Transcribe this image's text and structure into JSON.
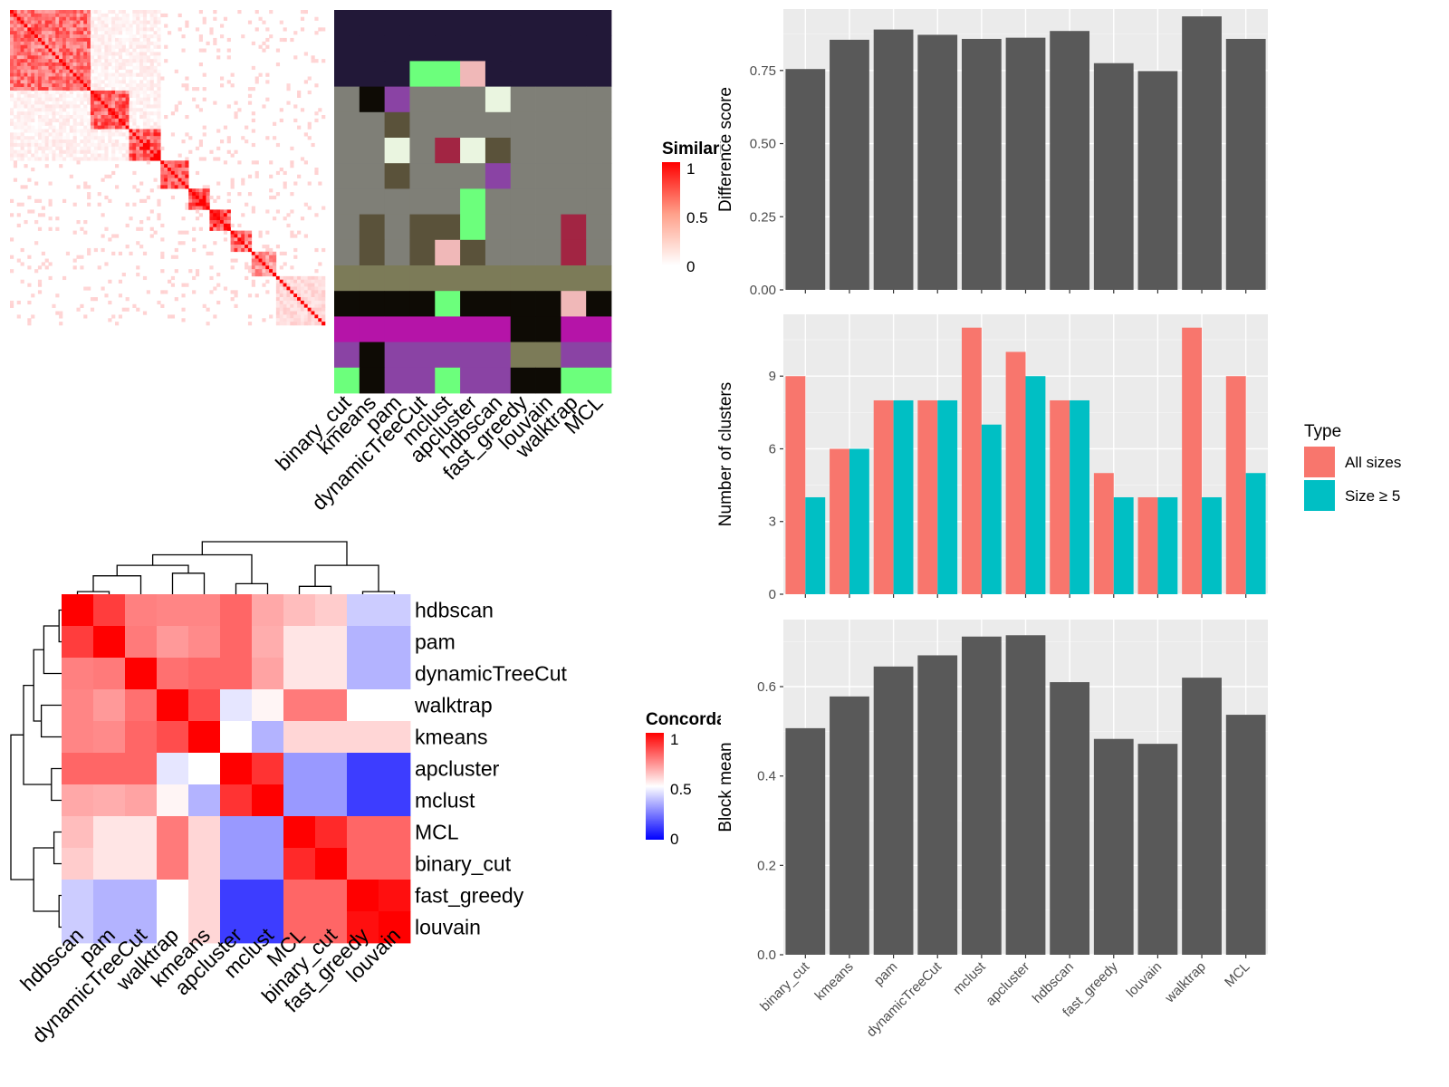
{
  "methods": [
    "binary_cut",
    "kmeans",
    "pam",
    "dynamicTreeCut",
    "mclust",
    "apcluster",
    "hdbscan",
    "fast_greedy",
    "louvain",
    "walktrap",
    "MCL"
  ],
  "similarity_legend": {
    "title": "Similarity",
    "ticks": [
      "1",
      "0.5",
      "0"
    ],
    "colors": [
      "#ff0000",
      "#ffffff"
    ]
  },
  "concordance_legend": {
    "title": "Concordance",
    "ticks": [
      "1",
      "0.5",
      "0"
    ],
    "colors": [
      "#ff0000",
      "#ffffff",
      "#0000ff"
    ]
  },
  "type_legend": {
    "title": "Type",
    "items": [
      {
        "label": "All sizes",
        "color": "#f8766d"
      },
      {
        "label": "Size ≥ 5",
        "color": "#00bfc4"
      }
    ]
  },
  "cluster_colors": {
    "palette": [
      "#221838",
      "#7f7f77",
      "#5a523a",
      "#7c7b58",
      "#0e0b05",
      "#b514a8",
      "#8a43a4",
      "#6cff7c",
      "#f0b8b8",
      "#eaf5e0",
      "#a22543",
      "#ffffff"
    ],
    "row_groups": [
      4,
      3,
      3,
      3,
      2,
      2,
      2,
      1,
      1,
      1,
      1
    ],
    "strip_cells": [
      [
        0,
        0,
        0,
        0,
        0,
        0,
        0,
        0,
        0,
        0,
        0
      ],
      [
        0,
        0,
        0,
        0,
        0,
        0,
        0,
        0,
        0,
        0,
        0
      ],
      [
        0,
        0,
        0,
        7,
        7,
        8,
        0,
        0,
        0,
        0,
        0
      ],
      [
        1,
        4,
        6,
        1,
        1,
        1,
        9,
        1,
        1,
        1,
        1
      ],
      [
        1,
        1,
        2,
        1,
        1,
        1,
        1,
        1,
        1,
        1,
        1
      ],
      [
        1,
        1,
        9,
        1,
        10,
        9,
        2,
        1,
        1,
        1,
        1
      ],
      [
        1,
        1,
        2,
        1,
        1,
        1,
        6,
        1,
        1,
        1,
        1
      ],
      [
        1,
        1,
        1,
        1,
        1,
        7,
        1,
        1,
        1,
        1,
        1
      ],
      [
        1,
        2,
        1,
        2,
        2,
        7,
        1,
        1,
        1,
        10,
        1
      ],
      [
        1,
        2,
        1,
        2,
        8,
        2,
        1,
        1,
        1,
        10,
        1
      ],
      [
        3,
        3,
        3,
        3,
        3,
        3,
        3,
        3,
        3,
        3,
        3
      ],
      [
        4,
        4,
        4,
        4,
        7,
        4,
        4,
        4,
        4,
        8,
        4
      ],
      [
        5,
        5,
        5,
        5,
        5,
        5,
        5,
        4,
        4,
        5,
        5
      ],
      [
        6,
        4,
        6,
        6,
        6,
        6,
        6,
        3,
        3,
        6,
        6
      ],
      [
        7,
        4,
        6,
        6,
        7,
        6,
        6,
        4,
        4,
        7,
        7
      ]
    ]
  },
  "chart_data": [
    {
      "type": "heatmap",
      "name": "similarity-matrix",
      "n_terms": 90,
      "blocks": [
        {
          "range": [
            0,
            23
          ],
          "within": 0.55
        },
        {
          "range": [
            23,
            34
          ],
          "within": 0.6
        },
        {
          "range": [
            34,
            43
          ],
          "within": 0.7
        },
        {
          "range": [
            43,
            51
          ],
          "within": 0.65
        },
        {
          "range": [
            51,
            57
          ],
          "within": 0.75
        },
        {
          "range": [
            57,
            63
          ],
          "within": 0.7
        },
        {
          "range": [
            63,
            69
          ],
          "within": 0.6
        },
        {
          "range": [
            69,
            76
          ],
          "within": 0.4
        },
        {
          "range": [
            76,
            90
          ],
          "within": 0.15
        }
      ],
      "legend": "Similarity"
    },
    {
      "type": "bar",
      "name": "difference-score",
      "categories": [
        "binary_cut",
        "kmeans",
        "pam",
        "dynamicTreeCut",
        "mclust",
        "apcluster",
        "hdbscan",
        "fast_greedy",
        "louvain",
        "walktrap",
        "MCL"
      ],
      "values": [
        0.755,
        0.855,
        0.89,
        0.872,
        0.858,
        0.862,
        0.885,
        0.775,
        0.748,
        0.935,
        0.858
      ],
      "ylabel": "Difference score",
      "ylim": [
        0,
        0.96
      ],
      "yticks": [
        0,
        0.25,
        0.5,
        0.75
      ],
      "ytick_labels": [
        "0.00",
        "0.25",
        "0.50",
        "0.75"
      ]
    },
    {
      "type": "bar",
      "name": "number-of-clusters",
      "categories": [
        "binary_cut",
        "kmeans",
        "pam",
        "dynamicTreeCut",
        "mclust",
        "apcluster",
        "hdbscan",
        "fast_greedy",
        "louvain",
        "walktrap",
        "MCL"
      ],
      "series": [
        {
          "name": "All sizes",
          "values": [
            9,
            6,
            8,
            8,
            11,
            10,
            8,
            5,
            4,
            11,
            9
          ]
        },
        {
          "name": "Size ≥ 5",
          "values": [
            4,
            6,
            8,
            8,
            7,
            9,
            8,
            4,
            4,
            4,
            5
          ]
        }
      ],
      "ylabel": "Number of clusters",
      "ylim": [
        0,
        11.55
      ],
      "yticks": [
        0,
        3,
        6,
        9
      ],
      "ytick_labels": [
        "0",
        "3",
        "6",
        "9"
      ],
      "legend": "Type"
    },
    {
      "type": "bar",
      "name": "block-mean",
      "categories": [
        "binary_cut",
        "kmeans",
        "pam",
        "dynamicTreeCut",
        "mclust",
        "apcluster",
        "hdbscan",
        "fast_greedy",
        "louvain",
        "walktrap",
        "MCL"
      ],
      "values": [
        0.507,
        0.578,
        0.645,
        0.67,
        0.712,
        0.715,
        0.61,
        0.483,
        0.472,
        0.62,
        0.537
      ],
      "ylabel": "Block mean",
      "ylim": [
        0,
        0.75
      ],
      "yticks": [
        0,
        0.2,
        0.4,
        0.6
      ],
      "ytick_labels": [
        "0.0",
        "0.2",
        "0.4",
        "0.6"
      ]
    },
    {
      "type": "heatmap",
      "name": "concordance-matrix",
      "order": [
        "hdbscan",
        "pam",
        "dynamicTreeCut",
        "walktrap",
        "kmeans",
        "apcluster",
        "mclust",
        "MCL",
        "binary_cut",
        "fast_greedy",
        "louvain"
      ],
      "values": [
        [
          1.0,
          0.88,
          0.75,
          0.74,
          0.74,
          0.8,
          0.67,
          0.63,
          0.6,
          0.4,
          0.4
        ],
        [
          0.88,
          1.0,
          0.76,
          0.7,
          0.73,
          0.8,
          0.66,
          0.55,
          0.55,
          0.35,
          0.35
        ],
        [
          0.75,
          0.76,
          1.0,
          0.78,
          0.8,
          0.8,
          0.68,
          0.55,
          0.55,
          0.35,
          0.35
        ],
        [
          0.74,
          0.7,
          0.78,
          1.0,
          0.85,
          0.45,
          0.52,
          0.76,
          0.76,
          0.5,
          0.5
        ],
        [
          0.74,
          0.73,
          0.8,
          0.85,
          1.0,
          0.5,
          0.35,
          0.58,
          0.58,
          0.58,
          0.58
        ],
        [
          0.8,
          0.8,
          0.8,
          0.45,
          0.5,
          1.0,
          0.9,
          0.3,
          0.3,
          0.12,
          0.12
        ],
        [
          0.67,
          0.66,
          0.68,
          0.52,
          0.35,
          0.9,
          1.0,
          0.3,
          0.3,
          0.12,
          0.12
        ],
        [
          0.63,
          0.55,
          0.55,
          0.76,
          0.58,
          0.3,
          0.3,
          1.0,
          0.92,
          0.8,
          0.8
        ],
        [
          0.6,
          0.55,
          0.55,
          0.76,
          0.58,
          0.3,
          0.3,
          0.92,
          1.0,
          0.8,
          0.8
        ],
        [
          0.4,
          0.35,
          0.35,
          0.5,
          0.58,
          0.12,
          0.12,
          0.8,
          0.8,
          1.0,
          0.97
        ],
        [
          0.4,
          0.35,
          0.35,
          0.5,
          0.58,
          0.12,
          0.12,
          0.8,
          0.8,
          0.97,
          1.0
        ]
      ],
      "legend": "Concordance"
    }
  ]
}
